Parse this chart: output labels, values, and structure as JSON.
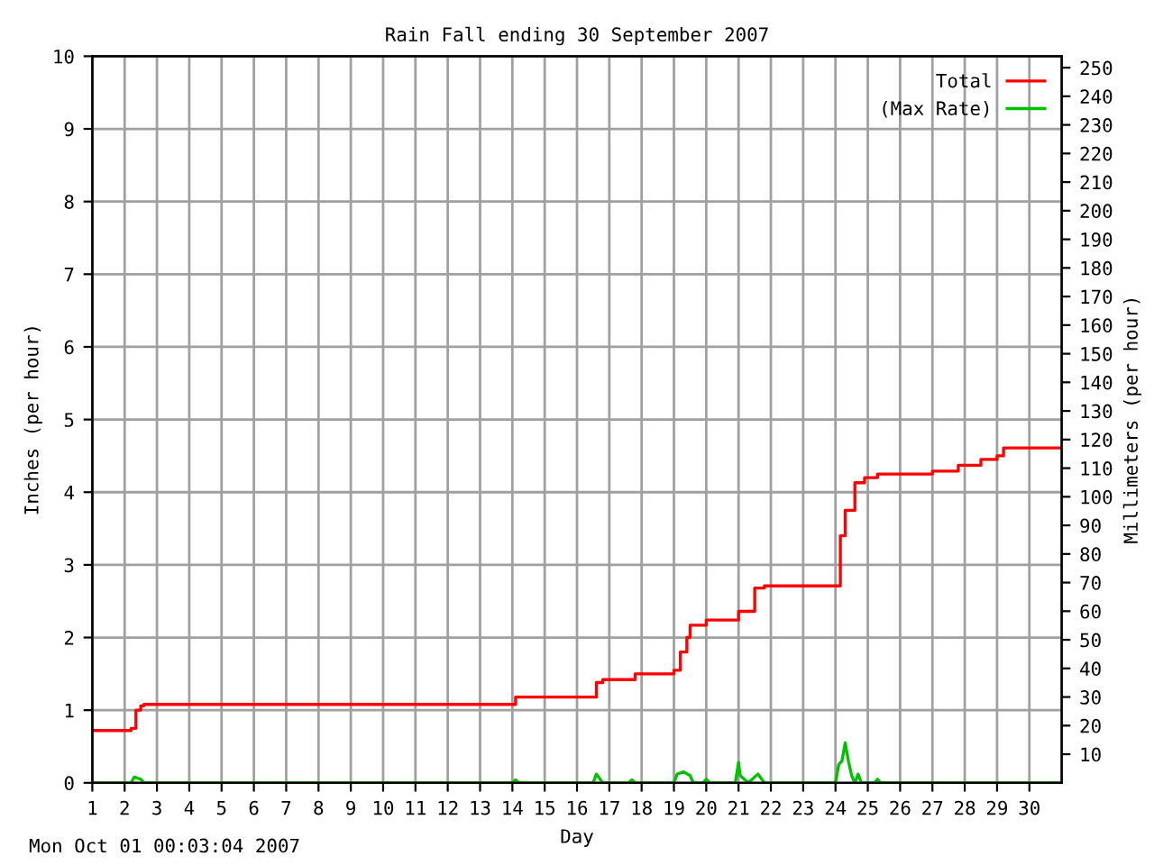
{
  "chart_data": {
    "type": "step",
    "title": "Rain Fall ending 30 September 2007",
    "xlabel": "Day",
    "ylabel": "Inches (per hour)",
    "y2label": "Millimeters (per hour)",
    "series": [
      {
        "name": "Total",
        "color": "#ff0000",
        "x": [
          1,
          2.2,
          2.35,
          2.5,
          2.6,
          5.2,
          14.1,
          16.6,
          16.8,
          17.8,
          19.0,
          19.2,
          19.4,
          19.5,
          20.0,
          21.0,
          21.5,
          21.8,
          24.0,
          24.15,
          24.3,
          24.6,
          24.9,
          25.3,
          27.0,
          27.8,
          28.5,
          29.0,
          29.2,
          31
        ],
        "values": [
          0.72,
          0.75,
          1.0,
          1.06,
          1.08,
          1.08,
          1.18,
          1.38,
          1.42,
          1.5,
          1.55,
          1.8,
          2.0,
          2.17,
          2.24,
          2.36,
          2.68,
          2.71,
          2.71,
          3.4,
          3.75,
          4.13,
          4.2,
          4.25,
          4.29,
          4.37,
          4.45,
          4.5,
          4.61,
          4.61
        ]
      },
      {
        "name": "(Max Rate)",
        "color": "#00c000",
        "type": "line",
        "x": [
          1,
          2.2,
          2.3,
          2.5,
          2.6,
          14.0,
          14.1,
          14.2,
          16.5,
          16.6,
          16.8,
          17.6,
          17.7,
          17.8,
          19.0,
          19.1,
          19.3,
          19.5,
          19.6,
          19.9,
          20.0,
          20.1,
          20.9,
          21.0,
          21.05,
          21.3,
          21.6,
          21.8,
          24.0,
          24.1,
          24.2,
          24.3,
          24.4,
          24.5,
          24.6,
          24.7,
          24.8,
          25.2,
          25.3,
          25.4,
          31
        ],
        "values": [
          0,
          0,
          0.08,
          0.05,
          0,
          0,
          0.04,
          0,
          0,
          0.12,
          0,
          0,
          0.04,
          0,
          0,
          0.12,
          0.15,
          0.1,
          0,
          0,
          0.05,
          0,
          0,
          0.28,
          0.1,
          0,
          0.12,
          0,
          0,
          0.25,
          0.3,
          0.55,
          0.3,
          0.1,
          0,
          0.12,
          0,
          0,
          0.05,
          0,
          0
        ]
      }
    ],
    "xlim": [
      1,
      31
    ],
    "xticks": [
      1,
      2,
      3,
      4,
      5,
      6,
      7,
      8,
      9,
      10,
      11,
      12,
      13,
      14,
      15,
      16,
      17,
      18,
      19,
      20,
      21,
      22,
      23,
      24,
      25,
      26,
      27,
      28,
      29,
      30
    ],
    "ylim": [
      0,
      10
    ],
    "yticks": [
      0,
      1,
      2,
      3,
      4,
      5,
      6,
      7,
      8,
      9,
      10
    ],
    "y2lim": [
      0,
      254
    ],
    "y2ticks": [
      10,
      20,
      30,
      40,
      50,
      60,
      70,
      80,
      90,
      100,
      110,
      120,
      130,
      140,
      150,
      160,
      170,
      180,
      190,
      200,
      210,
      220,
      230,
      240,
      250
    ],
    "grid": true,
    "legend": "top right",
    "annotations": [
      "Mon Oct 01 00:03:04 2007"
    ]
  }
}
